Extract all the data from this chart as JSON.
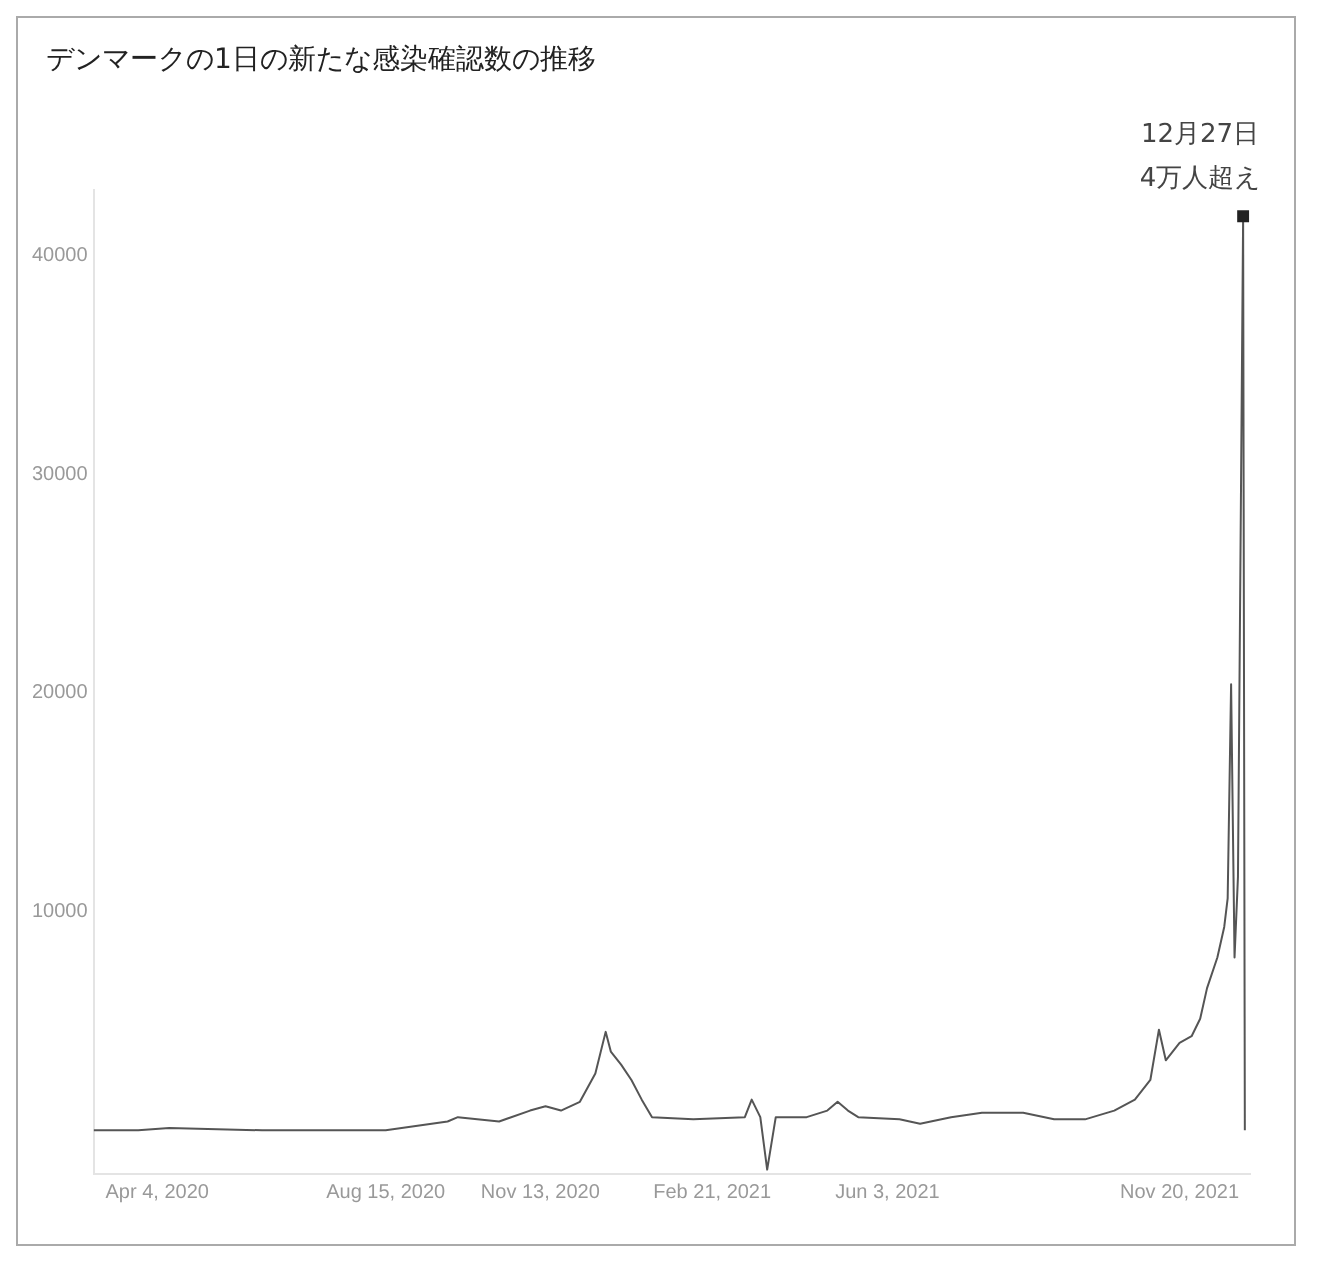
{
  "chart_data": {
    "type": "line",
    "title": "デンマークの1日の新たな感染確認数の推移",
    "x": [
      "2020-02-27",
      "2020-03-24",
      "2020-04-11",
      "2020-06-04",
      "2020-08-15",
      "2020-09-20",
      "2020-09-26",
      "2020-10-20",
      "2020-11-07",
      "2020-11-16",
      "2020-11-25",
      "2020-12-06",
      "2020-12-15",
      "2020-12-21",
      "2020-12-24",
      "2020-12-30",
      "2021-01-05",
      "2021-01-11",
      "2021-01-17",
      "2021-02-10",
      "2021-03-12",
      "2021-03-16",
      "2021-03-21",
      "2021-03-25",
      "2021-03-30",
      "2021-04-17",
      "2021-04-29",
      "2021-05-05",
      "2021-05-11",
      "2021-05-17",
      "2021-06-10",
      "2021-06-22",
      "2021-07-10",
      "2021-07-28",
      "2021-08-21",
      "2021-09-08",
      "2021-09-26",
      "2021-10-13",
      "2021-10-25",
      "2021-11-03",
      "2021-11-08",
      "2021-11-12",
      "2021-11-20",
      "2021-11-27",
      "2021-12-02",
      "2021-12-06",
      "2021-12-12",
      "2021-12-16",
      "2021-12-18",
      "2021-12-20",
      "2021-12-22",
      "2021-12-24",
      "2021-12-27",
      "2021-12-28"
    ],
    "series": [
      {
        "color": "#555555",
        "values": [
          0,
          0,
          100,
          0,
          0,
          400,
          600,
          400,
          900,
          1100,
          900,
          1300,
          2600,
          4500,
          3600,
          3000,
          2300,
          1400,
          600,
          500,
          600,
          1400,
          600,
          -1800,
          600,
          600,
          900,
          1300,
          900,
          600,
          500,
          300,
          600,
          800,
          800,
          500,
          500,
          900,
          1400,
          2300,
          4600,
          3200,
          4000,
          4300,
          5100,
          6500,
          7900,
          9300,
          10600,
          20400,
          7900,
          11600,
          41800,
          0
        ]
      }
    ],
    "xticks": [
      {
        "value": "2020-04-04",
        "label": "Apr 4, 2020"
      },
      {
        "value": "2020-08-15",
        "label": "Aug 15, 2020"
      },
      {
        "value": "2020-11-13",
        "label": "Nov 13, 2020"
      },
      {
        "value": "2021-02-21",
        "label": "Feb 21, 2021"
      },
      {
        "value": "2021-06-03",
        "label": "Jun 3, 2021"
      },
      {
        "value": "2021-11-20",
        "label": "Nov 20, 2021"
      }
    ],
    "xlim": [
      "2020-02-27",
      "2021-12-31"
    ],
    "ylim": [
      -2000,
      43000
    ],
    "yticks": [
      10000,
      20000,
      30000,
      40000
    ],
    "grid": false,
    "legend": false,
    "marker": "none",
    "line_style": "solid",
    "annotations": [
      {
        "text": "12月27日\n4万人超え",
        "x": "2021-12-27",
        "y": 41800
      }
    ]
  }
}
